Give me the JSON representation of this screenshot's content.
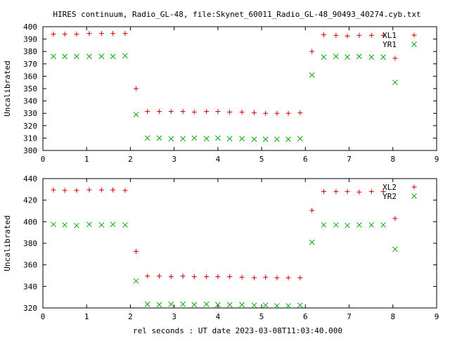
{
  "title": "HIRES continuum, Radio_GL-48, file:Skynet_60011_Radio_GL-48_90493_40274.cyb.txt",
  "xlabel": "rel seconds : UT date 2023-03-08T11:03:40.000",
  "colors": {
    "red": "#cc0000",
    "green": "#00aa00"
  },
  "chart_data": [
    {
      "type": "scatter",
      "ylabel": "Uncalibrated",
      "xlim": [
        0,
        9
      ],
      "ylim": [
        300,
        400
      ],
      "xticks": [
        0,
        1,
        2,
        3,
        4,
        5,
        6,
        7,
        8,
        9
      ],
      "yticks": [
        300,
        310,
        320,
        330,
        340,
        350,
        360,
        370,
        380,
        390,
        400
      ],
      "legend_position": "top-right",
      "series": [
        {
          "name": "XL1",
          "marker": "plus",
          "color": "#cc0000",
          "x": [
            0.24,
            0.5,
            0.77,
            1.06,
            1.34,
            1.6,
            1.88,
            2.13,
            2.39,
            2.66,
            2.93,
            3.2,
            3.46,
            3.74,
            4.0,
            4.27,
            4.55,
            4.83,
            5.09,
            5.35,
            5.61,
            5.88,
            6.15,
            6.42,
            6.7,
            6.96,
            7.23,
            7.51,
            7.78,
            8.05
          ],
          "y": [
            394,
            394,
            394,
            394.5,
            394.5,
            394.5,
            394.5,
            350,
            331.5,
            331.5,
            331.5,
            331.5,
            331,
            331.5,
            331.5,
            331,
            331,
            330.5,
            330,
            330,
            330,
            330.5,
            380,
            393.5,
            393,
            392.5,
            393,
            393,
            393,
            374.5
          ]
        },
        {
          "name": "YR1",
          "marker": "cross",
          "color": "#00aa00",
          "x": [
            0.24,
            0.5,
            0.77,
            1.06,
            1.34,
            1.6,
            1.88,
            2.13,
            2.39,
            2.66,
            2.93,
            3.2,
            3.46,
            3.74,
            4.0,
            4.27,
            4.55,
            4.83,
            5.09,
            5.35,
            5.61,
            5.88,
            6.15,
            6.42,
            6.7,
            6.96,
            7.23,
            7.51,
            7.78,
            8.05
          ],
          "y": [
            376,
            376,
            376,
            376,
            376,
            376,
            376.5,
            329,
            310,
            310,
            309.5,
            309.5,
            310,
            309.5,
            310,
            309.5,
            309.5,
            309,
            309,
            309,
            309,
            309.5,
            361,
            375.5,
            376,
            375.5,
            376,
            375.5,
            375.5,
            355
          ]
        }
      ]
    },
    {
      "type": "scatter",
      "ylabel": "Uncalibrated",
      "xlim": [
        0,
        9
      ],
      "ylim": [
        320,
        440
      ],
      "xticks": [
        0,
        1,
        2,
        3,
        4,
        5,
        6,
        7,
        8,
        9
      ],
      "yticks": [
        320,
        340,
        360,
        380,
        400,
        420,
        440
      ],
      "legend_position": "top-right",
      "series": [
        {
          "name": "XL2",
          "marker": "plus",
          "color": "#cc0000",
          "x": [
            0.24,
            0.5,
            0.77,
            1.06,
            1.34,
            1.6,
            1.88,
            2.13,
            2.39,
            2.66,
            2.93,
            3.2,
            3.46,
            3.74,
            4.0,
            4.27,
            4.55,
            4.83,
            5.09,
            5.35,
            5.61,
            5.88,
            6.15,
            6.42,
            6.7,
            6.96,
            7.23,
            7.51,
            7.78,
            8.05
          ],
          "y": [
            429.5,
            429,
            429,
            429.5,
            429.5,
            429.5,
            429,
            372.5,
            349.5,
            349.5,
            349,
            349.5,
            349,
            349,
            349,
            349,
            348.5,
            348,
            348.5,
            348,
            348,
            348,
            410.5,
            428,
            428,
            428,
            427.5,
            428,
            428,
            403
          ]
        },
        {
          "name": "YR2",
          "marker": "cross",
          "color": "#00aa00",
          "x": [
            0.24,
            0.5,
            0.77,
            1.06,
            1.34,
            1.6,
            1.88,
            2.13,
            2.39,
            2.66,
            2.93,
            3.2,
            3.46,
            3.74,
            4.0,
            4.27,
            4.55,
            4.83,
            5.09,
            5.35,
            5.61,
            5.88,
            6.15,
            6.42,
            6.7,
            6.96,
            7.23,
            7.51,
            7.78,
            8.05
          ],
          "y": [
            397.5,
            397,
            396.5,
            397.5,
            397,
            397.5,
            397,
            345,
            323.5,
            323,
            323.5,
            323.5,
            323,
            323.5,
            323,
            323,
            323,
            322.5,
            322.5,
            322,
            322,
            322.5,
            381,
            397,
            397,
            396.5,
            397,
            397,
            397,
            374.5
          ]
        }
      ]
    }
  ]
}
